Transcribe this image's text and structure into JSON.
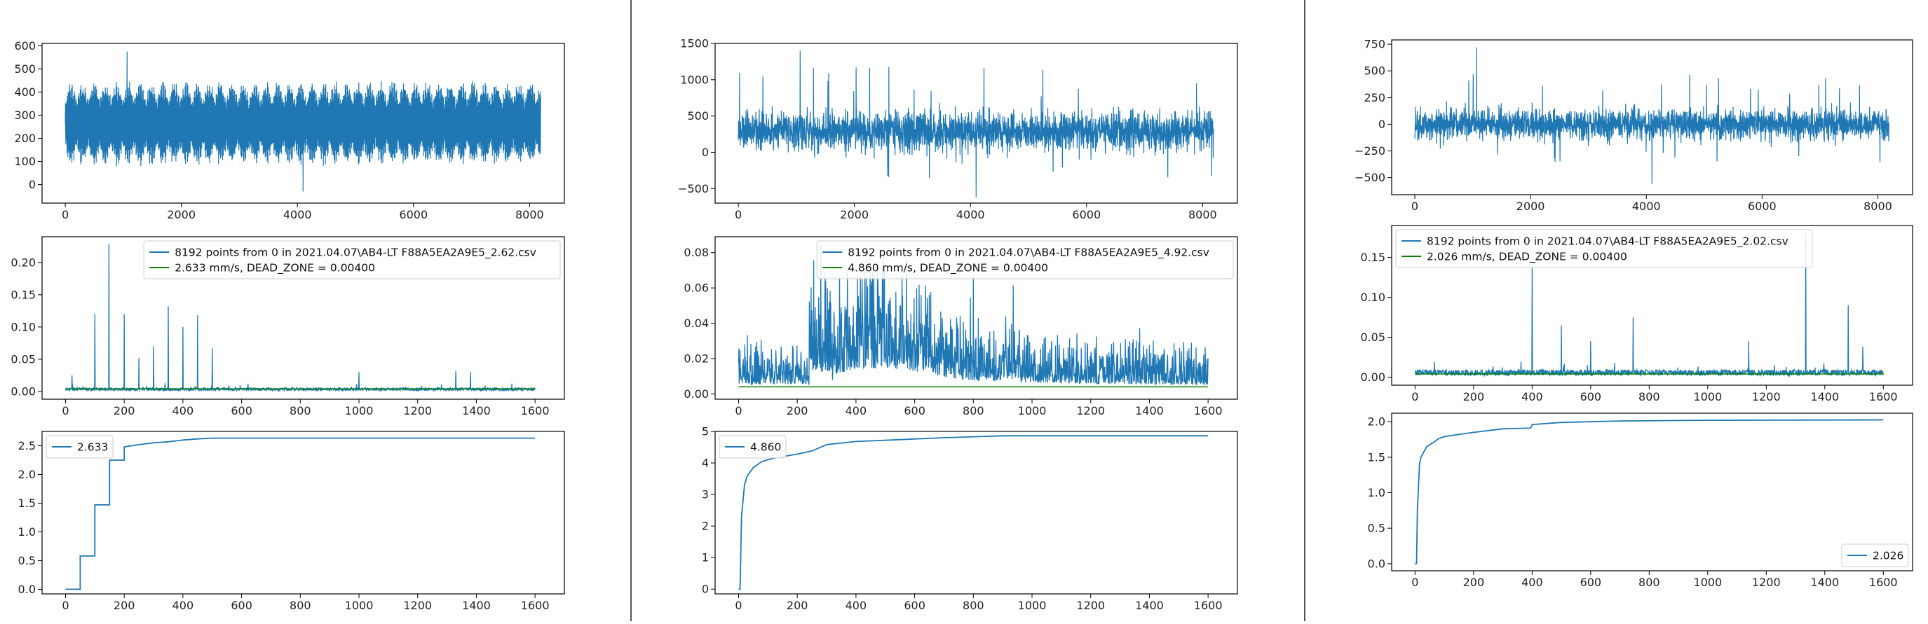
{
  "colors": {
    "signal": "#1f77b4",
    "dead_zone": "#008000",
    "axis": "#000000",
    "separator": "#555555",
    "background": "#ffffff"
  },
  "chart_data": [
    {
      "panel": 1,
      "row": 1,
      "type": "line",
      "title": "",
      "xlabel": "",
      "ylabel": "",
      "xlim": [
        -400,
        8600
      ],
      "ylim": [
        -80,
        610
      ],
      "xticks": [
        0,
        2000,
        4000,
        6000,
        8000
      ],
      "yticks": [
        0,
        100,
        200,
        300,
        400,
        500,
        600
      ],
      "grid": false,
      "legend": null,
      "series": [
        {
          "points": 8192,
          "x_range": [
            0,
            8191
          ],
          "mean": 265,
          "amplitude_approx": 180,
          "min_approx": -30,
          "max_approx": 575,
          "pattern": "periodic bursts"
        }
      ]
    },
    {
      "panel": 1,
      "row": 2,
      "type": "line",
      "title": "",
      "xlabel": "",
      "ylabel": "",
      "xlim": [
        -80,
        1700
      ],
      "ylim": [
        -0.012,
        0.24
      ],
      "xticks": [
        0,
        200,
        400,
        600,
        800,
        1000,
        1200,
        1400,
        1600
      ],
      "yticks": [
        0.0,
        0.05,
        0.1,
        0.15,
        0.2
      ],
      "grid": false,
      "legend": "top-right",
      "series": [
        {
          "name": "8192 points from 0  in  2021.04.07\\AB4-LT F88A5EA2A9E5_2.62.csv",
          "color": "#1f77b4",
          "x_range": [
            0,
            1600
          ],
          "baseline": 0.003,
          "peaks": [
            [
              22,
              0.025
            ],
            [
              100,
              0.12
            ],
            [
              148,
              0.229
            ],
            [
              200,
              0.12
            ],
            [
              250,
              0.052
            ],
            [
              300,
              0.07
            ],
            [
              350,
              0.132
            ],
            [
              400,
              0.1
            ],
            [
              450,
              0.118
            ],
            [
              500,
              0.067
            ],
            [
              1000,
              0.03
            ],
            [
              1330,
              0.032
            ],
            [
              1380,
              0.03
            ]
          ]
        },
        {
          "name": "2.633 mm/s,   DEAD_ZONE = 0.00400",
          "color": "#008000",
          "value": 0.004
        }
      ]
    },
    {
      "panel": 1,
      "row": 3,
      "type": "line",
      "title": "",
      "xlabel": "",
      "ylabel": "",
      "xlim": [
        -80,
        1700
      ],
      "ylim": [
        -0.08,
        2.75
      ],
      "xticks": [
        0,
        200,
        400,
        600,
        800,
        1000,
        1200,
        1400,
        1600
      ],
      "yticks": [
        0.0,
        0.5,
        1.0,
        1.5,
        2.0,
        2.5
      ],
      "grid": false,
      "legend": "top-left",
      "series": [
        {
          "name": "2.633",
          "color": "#1f77b4",
          "x": [
            0,
            50,
            50,
            100,
            100,
            150,
            150,
            200,
            200,
            250,
            300,
            350,
            400,
            450,
            500,
            1600
          ],
          "y": [
            0.0,
            0.0,
            0.58,
            0.58,
            1.47,
            1.47,
            2.25,
            2.25,
            2.48,
            2.52,
            2.55,
            2.57,
            2.6,
            2.62,
            2.633,
            2.633
          ]
        }
      ]
    },
    {
      "panel": 2,
      "row": 1,
      "type": "line",
      "title": "",
      "xlabel": "",
      "ylabel": "",
      "xlim": [
        -400,
        8600
      ],
      "ylim": [
        -700,
        1500
      ],
      "xticks": [
        0,
        2000,
        4000,
        6000,
        8000
      ],
      "yticks": [
        -500,
        0,
        500,
        1000,
        1500
      ],
      "grid": false,
      "legend": null,
      "series": [
        {
          "points": 8192,
          "x_range": [
            0,
            8191
          ],
          "mean": 290,
          "amplitude_approx": 300,
          "min_approx": -620,
          "max_approx": 1400,
          "pattern": "noise"
        }
      ]
    },
    {
      "panel": 2,
      "row": 2,
      "type": "line",
      "title": "",
      "xlabel": "",
      "ylabel": "",
      "xlim": [
        -80,
        1700
      ],
      "ylim": [
        -0.003,
        0.089
      ],
      "xticks": [
        0,
        200,
        400,
        600,
        800,
        1000,
        1200,
        1400,
        1600
      ],
      "yticks": [
        0.0,
        0.02,
        0.04,
        0.06,
        0.08
      ],
      "grid": false,
      "legend": "top-right",
      "series": [
        {
          "name": "8192 points from 0  in  2021.04.07\\AB4-LT F88A5EA2A9E5_4.92.csv",
          "color": "#1f77b4",
          "x_range": [
            0,
            1600
          ],
          "baseline": 0.012,
          "peaks": [
            [
              280,
              0.085
            ],
            [
              800,
              0.066
            ]
          ]
        },
        {
          "name": "4.860 mm/s,   DEAD_ZONE = 0.00400",
          "color": "#008000",
          "value": 0.004
        }
      ]
    },
    {
      "panel": 2,
      "row": 3,
      "type": "line",
      "title": "",
      "xlabel": "",
      "ylabel": "",
      "xlim": [
        -80,
        1700
      ],
      "ylim": [
        -0.15,
        5.0
      ],
      "xticks": [
        0,
        200,
        400,
        600,
        800,
        1000,
        1200,
        1400,
        1600
      ],
      "yticks": [
        0,
        1,
        2,
        3,
        4,
        5
      ],
      "grid": false,
      "legend": "top-left",
      "series": [
        {
          "name": "4.860",
          "color": "#1f77b4",
          "x": [
            0,
            5,
            10,
            20,
            30,
            50,
            80,
            120,
            200,
            250,
            300,
            400,
            500,
            700,
            900,
            1600
          ],
          "y": [
            0.0,
            0.0,
            2.3,
            3.3,
            3.6,
            3.85,
            4.05,
            4.15,
            4.28,
            4.38,
            4.58,
            4.68,
            4.72,
            4.8,
            4.86,
            4.86
          ]
        }
      ]
    },
    {
      "panel": 3,
      "row": 1,
      "type": "line",
      "title": "",
      "xlabel": "",
      "ylabel": "",
      "xlim": [
        -400,
        8600
      ],
      "ylim": [
        -660,
        790
      ],
      "xticks": [
        0,
        2000,
        4000,
        6000,
        8000
      ],
      "yticks": [
        -500,
        -250,
        0,
        250,
        500,
        750
      ],
      "grid": false,
      "legend": null,
      "series": [
        {
          "points": 8192,
          "x_range": [
            0,
            8191
          ],
          "mean": 0,
          "amplitude_approx": 160,
          "min_approx": -560,
          "max_approx": 720,
          "pattern": "noise"
        }
      ]
    },
    {
      "panel": 3,
      "row": 2,
      "type": "line",
      "title": "",
      "xlabel": "",
      "ylabel": "",
      "xlim": [
        -80,
        1700
      ],
      "ylim": [
        -0.01,
        0.19
      ],
      "xticks": [
        0,
        200,
        400,
        600,
        800,
        1000,
        1200,
        1400,
        1600
      ],
      "yticks": [
        0.0,
        0.05,
        0.1,
        0.15
      ],
      "grid": false,
      "legend": "top-left",
      "series": [
        {
          "name": "8192 points from 0  in  2021.04.07\\AB4-LT F88A5EA2A9E5_2.02.csv",
          "color": "#1f77b4",
          "x_range": [
            0,
            1600
          ],
          "baseline": 0.005,
          "peaks": [
            [
              400,
              0.138
            ],
            [
              500,
              0.065
            ],
            [
              600,
              0.045
            ],
            [
              745,
              0.075
            ],
            [
              1140,
              0.045
            ],
            [
              1335,
              0.18
            ],
            [
              1480,
              0.09
            ],
            [
              1530,
              0.038
            ]
          ]
        },
        {
          "name": "2.026 mm/s,   DEAD_ZONE = 0.00400",
          "color": "#008000",
          "value": 0.004
        }
      ]
    },
    {
      "panel": 3,
      "row": 3,
      "type": "line",
      "title": "",
      "xlabel": "",
      "ylabel": "",
      "xlim": [
        -80,
        1700
      ],
      "ylim": [
        -0.1,
        2.12
      ],
      "xticks": [
        0,
        200,
        400,
        600,
        800,
        1000,
        1200,
        1400,
        1600
      ],
      "yticks": [
        0.0,
        0.5,
        1.0,
        1.5,
        2.0
      ],
      "grid": false,
      "legend": "bottom-right",
      "series": [
        {
          "name": "2.026",
          "color": "#1f77b4",
          "x": [
            0,
            5,
            8,
            15,
            20,
            40,
            60,
            80,
            100,
            150,
            200,
            300,
            395,
            400,
            500,
            700,
            1000,
            1600
          ],
          "y": [
            0.0,
            0.0,
            0.75,
            1.4,
            1.5,
            1.65,
            1.7,
            1.76,
            1.79,
            1.82,
            1.85,
            1.9,
            1.91,
            1.96,
            1.99,
            2.01,
            2.02,
            2.026
          ]
        }
      ]
    }
  ]
}
